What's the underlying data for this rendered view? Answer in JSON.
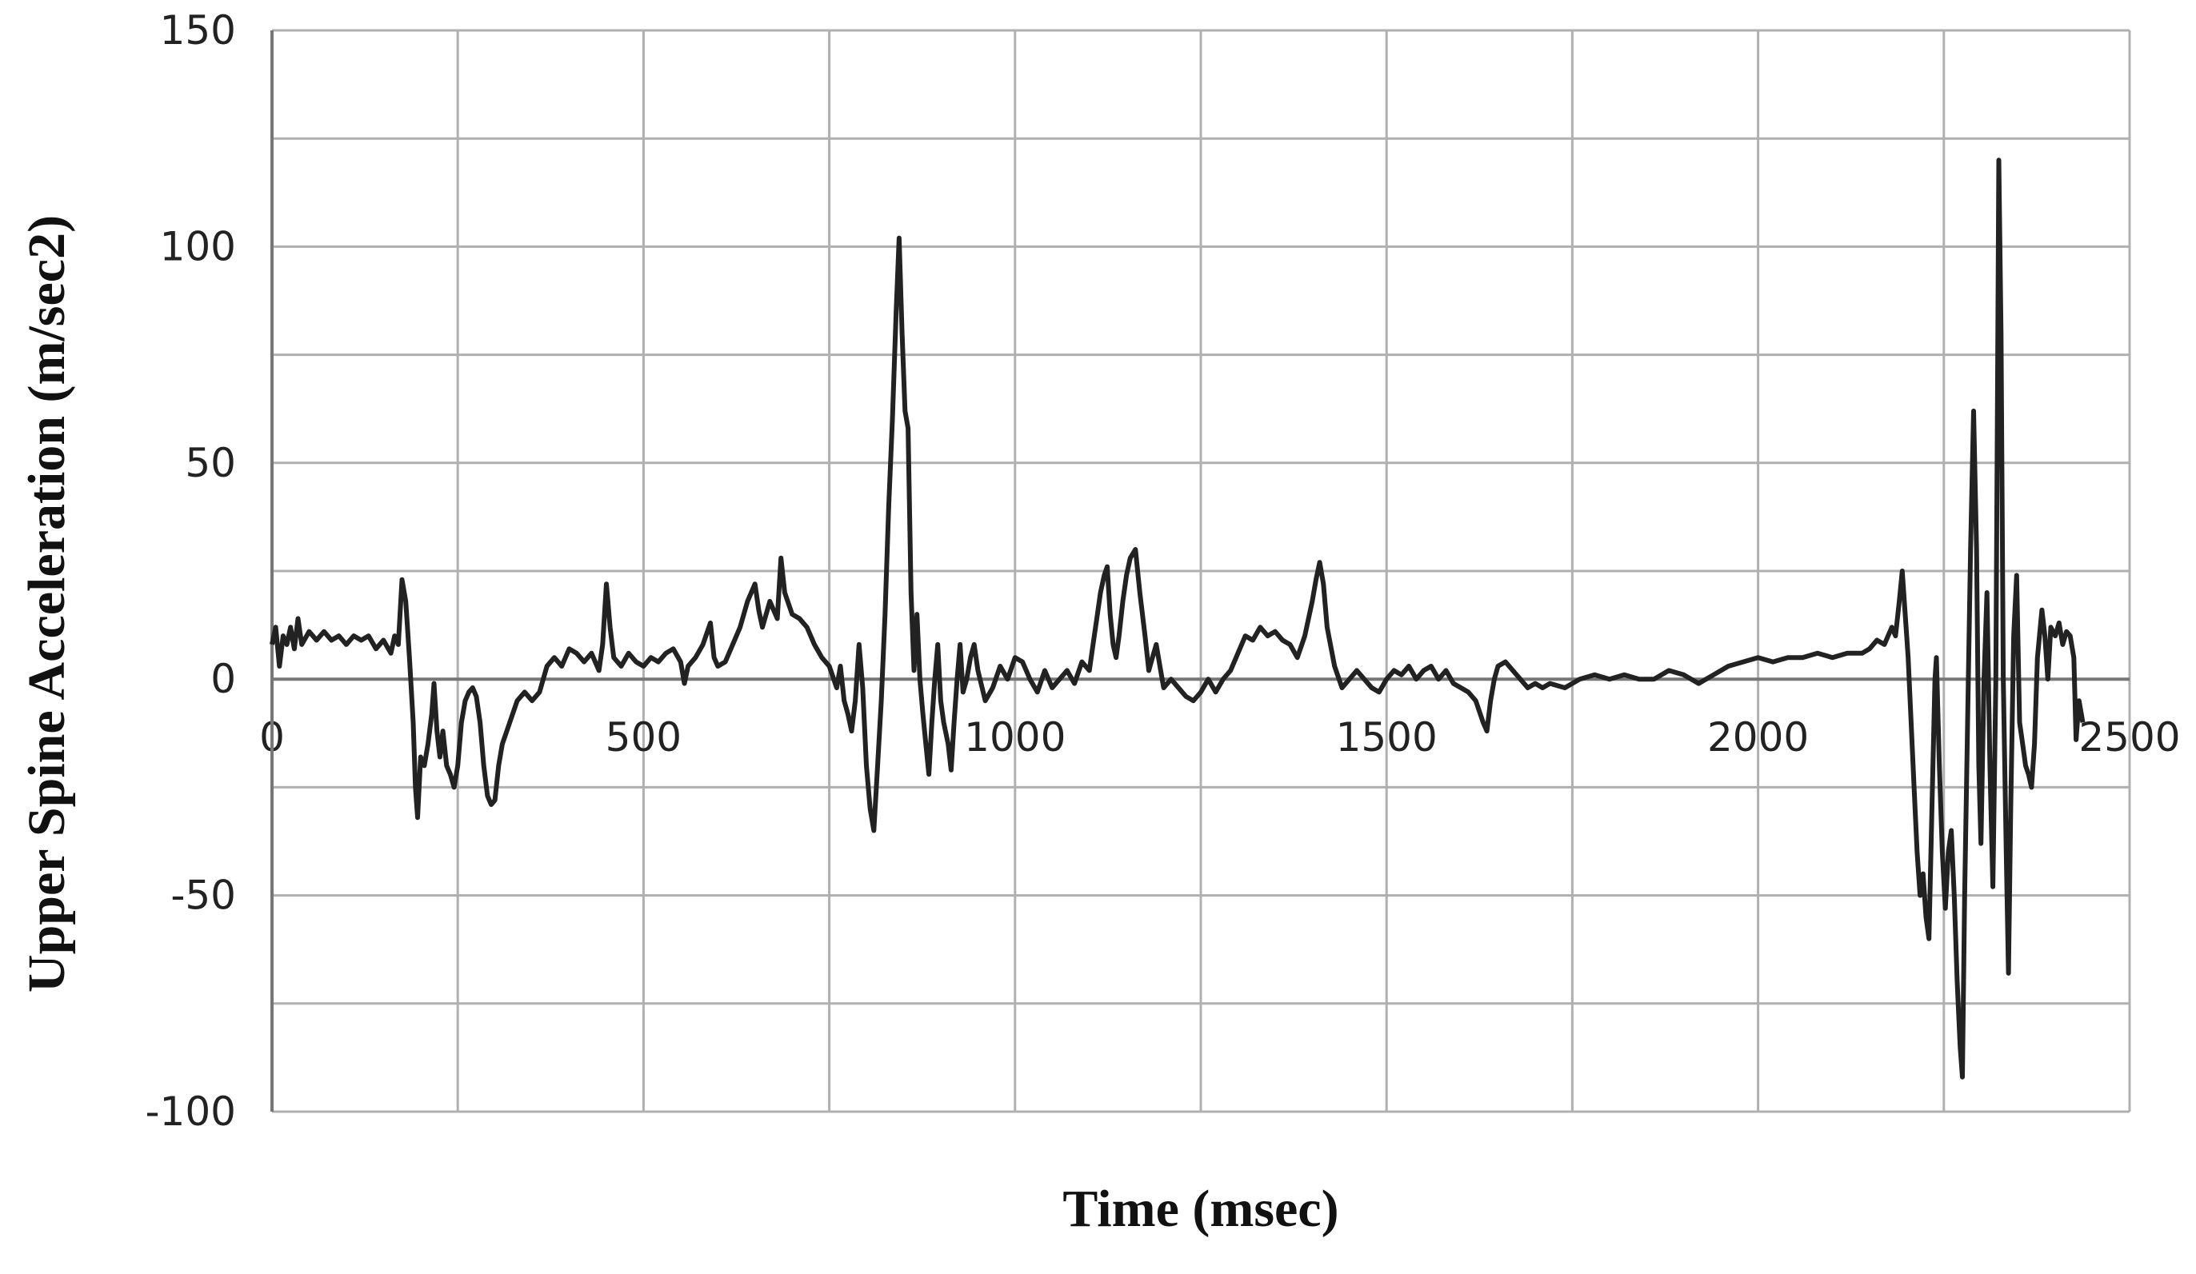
{
  "chart_data": {
    "type": "line",
    "x_label": "Time (msec)",
    "y_label": "Upper Spine Acceleration (m/sec2)",
    "color": "#222222",
    "grid": true,
    "xlim": [
      0,
      2500
    ],
    "xticks": [
      0,
      500,
      1000,
      1500,
      2000,
      2500
    ],
    "xminorticks": [
      250,
      750,
      1250,
      1750,
      2250
    ],
    "ylim": [
      -100,
      150
    ],
    "yticks": [
      -100,
      -50,
      0,
      50,
      100,
      150
    ],
    "yminorticks": [
      -75,
      -25,
      25,
      75,
      125
    ],
    "x": [
      0,
      5,
      10,
      15,
      20,
      25,
      30,
      35,
      40,
      50,
      60,
      70,
      80,
      90,
      100,
      110,
      120,
      130,
      140,
      150,
      160,
      165,
      170,
      175,
      180,
      185,
      190,
      193,
      196,
      200,
      205,
      210,
      215,
      218,
      222,
      226,
      230,
      235,
      240,
      245,
      250,
      255,
      260,
      265,
      270,
      275,
      280,
      285,
      290,
      295,
      300,
      305,
      310,
      320,
      330,
      340,
      350,
      360,
      370,
      380,
      390,
      400,
      410,
      420,
      430,
      440,
      445,
      450,
      455,
      460,
      470,
      480,
      490,
      500,
      510,
      520,
      530,
      540,
      550,
      555,
      560,
      570,
      580,
      590,
      595,
      600,
      610,
      620,
      630,
      640,
      650,
      655,
      660,
      670,
      680,
      685,
      690,
      700,
      710,
      720,
      730,
      740,
      750,
      760,
      765,
      770,
      775,
      780,
      785,
      790,
      795,
      800,
      805,
      810,
      815,
      820,
      825,
      830,
      835,
      840,
      844,
      848,
      852,
      856,
      860,
      864,
      868,
      872,
      876,
      880,
      884,
      888,
      892,
      896,
      900,
      904,
      910,
      914,
      918,
      922,
      926,
      930,
      935,
      940,
      945,
      950,
      960,
      970,
      980,
      990,
      1000,
      1010,
      1020,
      1030,
      1040,
      1050,
      1060,
      1070,
      1080,
      1090,
      1100,
      1105,
      1110,
      1115,
      1120,
      1124,
      1128,
      1132,
      1136,
      1140,
      1145,
      1150,
      1155,
      1162,
      1168,
      1175,
      1180,
      1185,
      1190,
      1195,
      1200,
      1210,
      1220,
      1230,
      1240,
      1250,
      1260,
      1270,
      1280,
      1290,
      1300,
      1310,
      1320,
      1330,
      1340,
      1350,
      1360,
      1370,
      1380,
      1390,
      1400,
      1405,
      1410,
      1415,
      1420,
      1430,
      1440,
      1450,
      1460,
      1470,
      1480,
      1490,
      1500,
      1510,
      1520,
      1530,
      1540,
      1550,
      1560,
      1570,
      1580,
      1590,
      1600,
      1610,
      1620,
      1630,
      1635,
      1640,
      1645,
      1650,
      1660,
      1670,
      1680,
      1690,
      1700,
      1710,
      1720,
      1740,
      1760,
      1780,
      1800,
      1820,
      1840,
      1860,
      1880,
      1900,
      1920,
      1940,
      1960,
      1980,
      2000,
      2020,
      2040,
      2060,
      2080,
      2100,
      2120,
      2140,
      2150,
      2160,
      2170,
      2175,
      2180,
      2185,
      2190,
      2194,
      2198,
      2202,
      2206,
      2210,
      2214,
      2218,
      2222,
      2226,
      2230,
      2234,
      2238,
      2240,
      2244,
      2248,
      2252,
      2256,
      2260,
      2264,
      2268,
      2272,
      2275,
      2278,
      2282,
      2286,
      2290,
      2294,
      2297,
      2300,
      2304,
      2308,
      2312,
      2316,
      2320,
      2322,
      2324,
      2327,
      2330,
      2334,
      2337,
      2340,
      2344,
      2348,
      2352,
      2356,
      2360,
      2364,
      2368,
      2372,
      2376,
      2382,
      2386,
      2390,
      2394,
      2400,
      2405,
      2410,
      2415,
      2420,
      2425,
      2428,
      2432,
      2437
    ],
    "values": [
      8,
      12,
      3,
      10,
      8,
      12,
      7,
      14,
      8,
      11,
      9,
      11,
      9,
      10,
      8,
      10,
      9,
      10,
      7,
      9,
      6,
      10,
      8,
      23,
      18,
      5,
      -10,
      -25,
      -32,
      -18,
      -20,
      -15,
      -8,
      -1,
      -12,
      -18,
      -12,
      -20,
      -22,
      -25,
      -20,
      -10,
      -5,
      -3,
      -2,
      -4,
      -10,
      -20,
      -27,
      -29,
      -28,
      -20,
      -15,
      -10,
      -5,
      -3,
      -5,
      -3,
      3,
      5,
      3,
      7,
      6,
      4,
      6,
      2,
      8,
      22,
      12,
      5,
      3,
      6,
      4,
      3,
      5,
      4,
      6,
      7,
      4,
      -1,
      3,
      5,
      8,
      13,
      5,
      3,
      4,
      8,
      12,
      18,
      22,
      16,
      12,
      18,
      14,
      28,
      20,
      15,
      14,
      12,
      8,
      5,
      3,
      -2,
      3,
      -5,
      -8,
      -12,
      -5,
      8,
      -2,
      -20,
      -30,
      -35,
      -20,
      -5,
      15,
      40,
      60,
      85,
      102,
      80,
      62,
      58,
      20,
      2,
      15,
      0,
      -8,
      -15,
      -22,
      -10,
      0,
      8,
      -5,
      -10,
      -15,
      -21,
      -10,
      0,
      8,
      -3,
      0,
      5,
      8,
      2,
      -5,
      -2,
      3,
      0,
      5,
      4,
      0,
      -3,
      2,
      -2,
      0,
      2,
      -1,
      4,
      2,
      8,
      14,
      20,
      24,
      26,
      15,
      8,
      5,
      10,
      18,
      24,
      28,
      30,
      20,
      10,
      2,
      5,
      8,
      3,
      -2,
      0,
      -2,
      -4,
      -5,
      -3,
      0,
      -3,
      0,
      2,
      6,
      10,
      9,
      12,
      10,
      11,
      9,
      8,
      5,
      10,
      18,
      23,
      27,
      22,
      12,
      3,
      -2,
      0,
      2,
      0,
      -2,
      -3,
      0,
      2,
      1,
      3,
      0,
      2,
      3,
      0,
      2,
      -1,
      -2,
      -3,
      -5,
      -10,
      -12,
      -5,
      0,
      3,
      4,
      2,
      0,
      -2,
      -1,
      -2,
      -1,
      -2,
      0,
      1,
      0,
      1,
      0,
      0,
      2,
      1,
      -1,
      1,
      3,
      4,
      5,
      4,
      5,
      5,
      6,
      5,
      6,
      6,
      7,
      9,
      8,
      10,
      12,
      10,
      18,
      25,
      15,
      5,
      -10,
      -25,
      -40,
      -50,
      -45,
      -55,
      -60,
      -30,
      0,
      5,
      -20,
      -40,
      -53,
      -40,
      -35,
      -50,
      -70,
      -85,
      -92,
      -50,
      -10,
      30,
      62,
      30,
      -20,
      -38,
      0,
      20,
      -20,
      -48,
      0,
      60,
      120,
      80,
      0,
      -40,
      -68,
      -30,
      10,
      24,
      -10,
      -15,
      -20,
      -22,
      -25,
      -15,
      5,
      16,
      10,
      0,
      12,
      10,
      13,
      8,
      11,
      10,
      5,
      -14,
      -5,
      -10
    ]
  }
}
